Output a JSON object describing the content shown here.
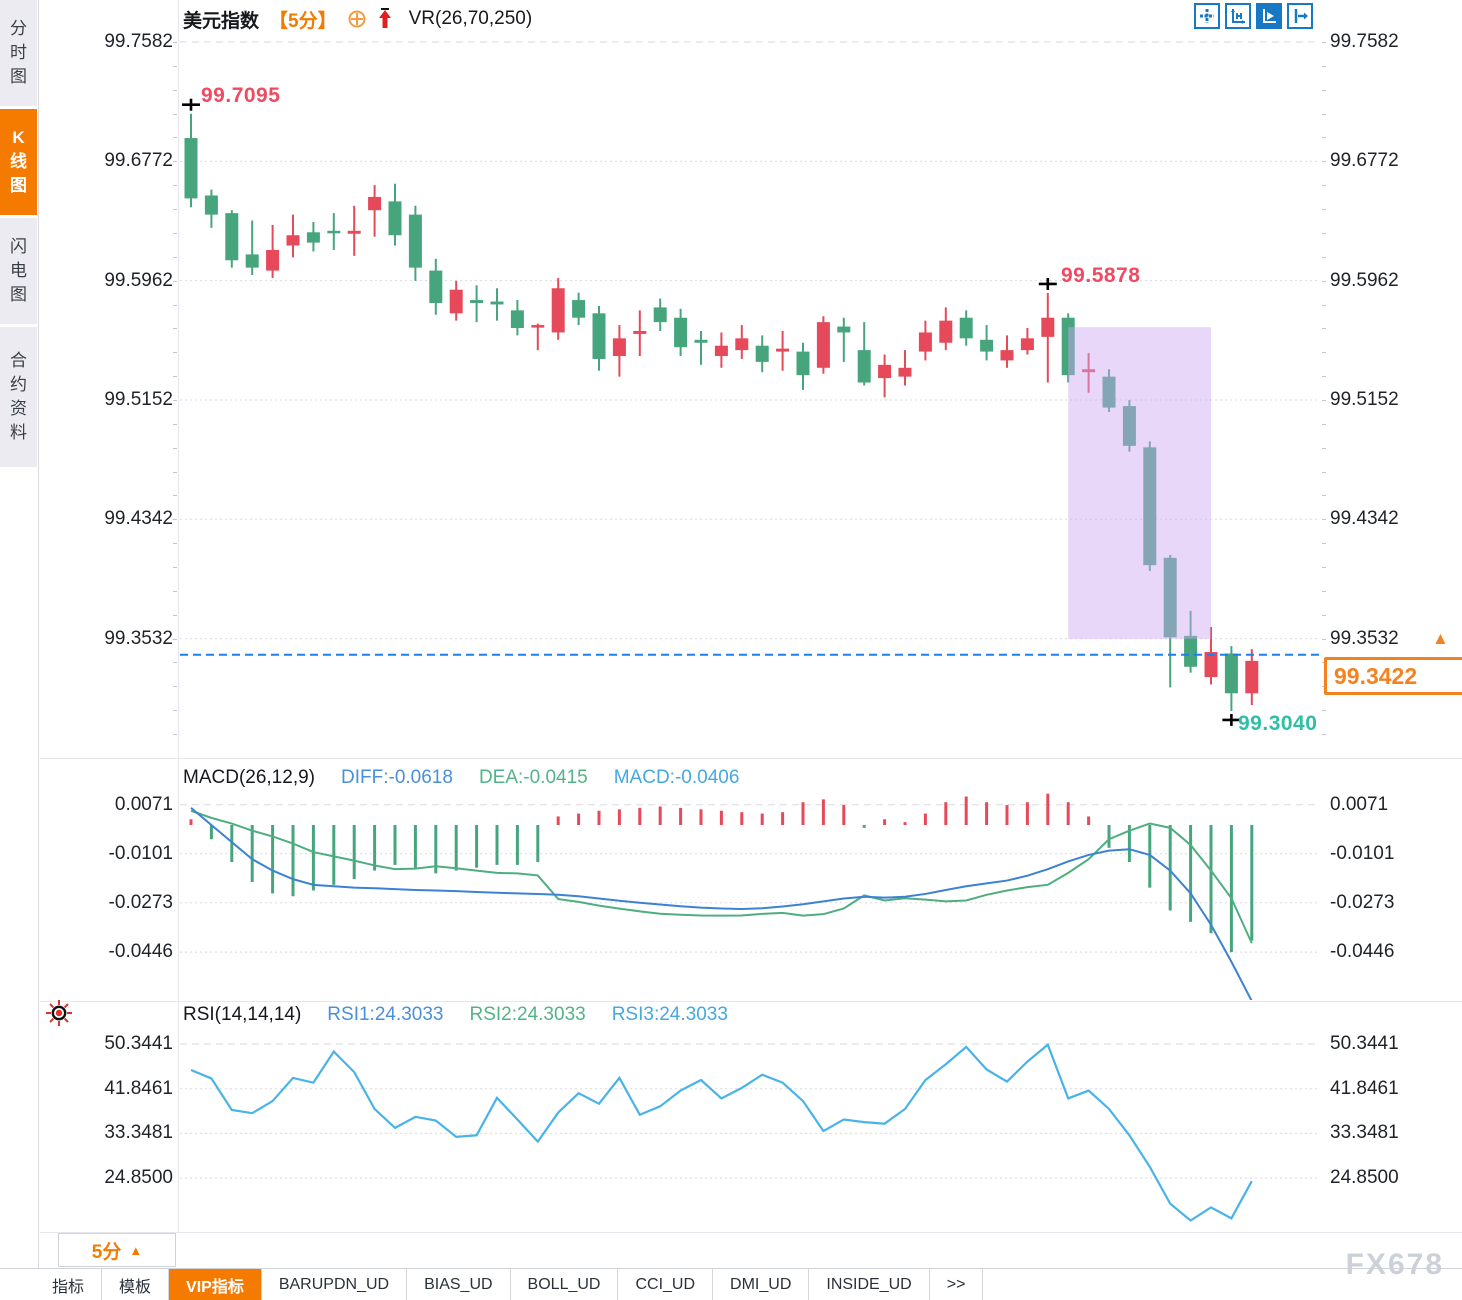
{
  "sidebar": {
    "items": [
      {
        "label": "分时图",
        "active": false
      },
      {
        "label": "K线图",
        "active": true
      },
      {
        "label": "闪电图",
        "active": false
      },
      {
        "label": "合约资料",
        "active": false
      }
    ]
  },
  "header": {
    "symbol": "美元指数",
    "timeframe": "【5分】",
    "indicator": "VR(26,70,250)"
  },
  "toolbar": {
    "icons": [
      "pan-icon",
      "axis-scale-icon",
      "axis-play-icon",
      "export-icon"
    ]
  },
  "icons": {
    "up_triangle": "▲"
  },
  "main_chart": {
    "high_label": "99.7095",
    "swing_high_label": "99.5878",
    "low_label": "99.3040",
    "last_price_label": "99.3422"
  },
  "macd_panel": {
    "title": "MACD(26,12,9)",
    "diff_label": "DIFF:-0.0618",
    "dea_label": "DEA:-0.0415",
    "macd_label": "MACD:-0.0406"
  },
  "rsi_panel": {
    "title": "RSI(14,14,14)",
    "rsi1_label": "RSI1:24.3033",
    "rsi2_label": "RSI2:24.3033",
    "rsi3_label": "RSI3:24.3033"
  },
  "bottom": {
    "timeframe_label": "5分",
    "tabs": [
      {
        "label": "指标",
        "active": false
      },
      {
        "label": "模板",
        "active": false
      },
      {
        "label": "VIP指标",
        "active": true
      },
      {
        "label": "BARUPDN_UD",
        "active": false
      },
      {
        "label": "BIAS_UD",
        "active": false
      },
      {
        "label": "BOLL_UD",
        "active": false
      },
      {
        "label": "CCI_UD",
        "active": false
      },
      {
        "label": "DMI_UD",
        "active": false
      },
      {
        "label": "INSIDE_UD",
        "active": false
      },
      {
        "label": ">>",
        "active": false
      }
    ],
    "watermark": "FX678"
  },
  "colors": {
    "up": "#e6495a",
    "down": "#47a57e",
    "diff_line": "#3b82d4",
    "dea_line": "#4fae7f",
    "rsi_line": "#49b3e8",
    "accent_orange": "#f57a00",
    "highlight_box": "rgba(206,167,245,0.45)",
    "last_price_line": "#1f7fe8",
    "grid": "#d9d9df"
  },
  "chart_data": [
    {
      "type": "candlestick",
      "title": "美元指数 5分",
      "price_top": 99.7582,
      "price_step": 0.081,
      "y_ticks": [
        "99.7582",
        "99.6772",
        "99.5962",
        "99.5152",
        "99.4342",
        "99.3532"
      ],
      "last_price": 99.3422,
      "candles": [
        [
          99.693,
          99.7095,
          99.646,
          99.652
        ],
        [
          99.654,
          99.658,
          99.632,
          99.641
        ],
        [
          99.642,
          99.644,
          99.605,
          99.61
        ],
        [
          99.614,
          99.637,
          99.6,
          99.605
        ],
        [
          99.603,
          99.634,
          99.598,
          99.617
        ],
        [
          99.62,
          99.641,
          99.612,
          99.627
        ],
        [
          99.629,
          99.636,
          99.616,
          99.622
        ],
        [
          99.63,
          99.642,
          99.617,
          99.629
        ],
        [
          99.628,
          99.647,
          99.613,
          99.63
        ],
        [
          99.644,
          99.661,
          99.626,
          99.653
        ],
        [
          99.65,
          99.662,
          99.62,
          99.627
        ],
        [
          99.641,
          99.647,
          99.596,
          99.605
        ],
        [
          99.603,
          99.611,
          99.573,
          99.581
        ],
        [
          99.574,
          99.596,
          99.569,
          99.59
        ],
        [
          99.583,
          99.593,
          99.568,
          99.581
        ],
        [
          99.582,
          99.591,
          99.569,
          99.58
        ],
        [
          99.576,
          99.583,
          99.559,
          99.564
        ],
        [
          99.565,
          99.567,
          99.549,
          99.566
        ],
        [
          99.561,
          99.598,
          99.556,
          99.591
        ],
        [
          99.583,
          99.588,
          99.566,
          99.571
        ],
        [
          99.574,
          99.579,
          99.535,
          99.543
        ],
        [
          99.545,
          99.566,
          99.531,
          99.557
        ],
        [
          99.56,
          99.576,
          99.545,
          99.562
        ],
        [
          99.578,
          99.584,
          99.562,
          99.568
        ],
        [
          99.571,
          99.577,
          99.545,
          99.551
        ],
        [
          99.556,
          99.562,
          99.539,
          99.554
        ],
        [
          99.545,
          99.561,
          99.537,
          99.552
        ],
        [
          99.549,
          99.566,
          99.543,
          99.557
        ],
        [
          99.552,
          99.559,
          99.534,
          99.541
        ],
        [
          99.548,
          99.562,
          99.535,
          99.55
        ],
        [
          99.548,
          99.554,
          99.522,
          99.532
        ],
        [
          99.537,
          99.572,
          99.533,
          99.568
        ],
        [
          99.565,
          99.571,
          99.541,
          99.561
        ],
        [
          99.549,
          99.568,
          99.525,
          99.527
        ],
        [
          99.53,
          99.546,
          99.517,
          99.539
        ],
        [
          99.531,
          99.549,
          99.525,
          99.537
        ],
        [
          99.548,
          99.569,
          99.542,
          99.561
        ],
        [
          99.554,
          99.578,
          99.549,
          99.569
        ],
        [
          99.571,
          99.576,
          99.552,
          99.557
        ],
        [
          99.556,
          99.566,
          99.542,
          99.548
        ],
        [
          99.542,
          99.559,
          99.537,
          99.549
        ],
        [
          99.549,
          99.564,
          99.546,
          99.557
        ],
        [
          99.558,
          99.5878,
          99.527,
          99.571
        ],
        [
          99.571,
          99.574,
          99.527,
          99.532
        ],
        [
          99.534,
          99.547,
          99.52,
          99.536
        ],
        [
          99.531,
          99.536,
          99.507,
          99.51
        ],
        [
          99.511,
          99.515,
          99.48,
          99.484
        ],
        [
          99.483,
          99.487,
          99.399,
          99.403
        ],
        [
          99.408,
          99.41,
          99.32,
          99.354
        ],
        [
          99.355,
          99.372,
          99.33,
          99.334
        ],
        [
          99.327,
          99.361,
          99.322,
          99.344
        ],
        [
          99.343,
          99.348,
          99.304,
          99.316
        ],
        [
          99.316,
          99.346,
          99.308,
          99.338
        ]
      ],
      "highlight_box": {
        "from_index": 43,
        "to_index": 50,
        "price_top": 99.5646,
        "price_bottom": 99.353
      },
      "cross_markers": [
        {
          "index": 0,
          "at": "high"
        },
        {
          "index": 42,
          "at": "high"
        },
        {
          "index": 51,
          "at": "low"
        }
      ]
    },
    {
      "type": "macd-histogram",
      "title": "MACD(26,12,9)",
      "y_ticks": [
        "0.0071",
        "-0.0101",
        "-0.0273",
        "-0.0446"
      ],
      "grid_values": [
        0.0071,
        -0.0101,
        -0.0273,
        -0.0446
      ],
      "diff": [
        0.006,
        0.0,
        -0.006,
        -0.012,
        -0.016,
        -0.019,
        -0.021,
        -0.0215,
        -0.022,
        -0.0222,
        -0.0225,
        -0.0228,
        -0.023,
        -0.0232,
        -0.0235,
        -0.0238,
        -0.024,
        -0.0242,
        -0.0245,
        -0.025,
        -0.0258,
        -0.0266,
        -0.0273,
        -0.0279,
        -0.0285,
        -0.029,
        -0.0293,
        -0.0295,
        -0.0292,
        -0.0286,
        -0.0278,
        -0.0268,
        -0.0258,
        -0.0252,
        -0.0255,
        -0.0252,
        -0.0242,
        -0.0228,
        -0.0215,
        -0.0205,
        -0.0195,
        -0.0178,
        -0.0155,
        -0.0128,
        -0.0105,
        -0.009,
        -0.0085,
        -0.0105,
        -0.016,
        -0.024,
        -0.035,
        -0.048,
        -0.0618
      ],
      "hist": [
        0.002,
        -0.005,
        -0.013,
        -0.02,
        -0.024,
        -0.025,
        -0.023,
        -0.021,
        -0.019,
        -0.016,
        -0.014,
        -0.015,
        -0.017,
        -0.016,
        -0.015,
        -0.014,
        -0.014,
        -0.013,
        0.003,
        0.004,
        0.005,
        0.0055,
        0.006,
        0.0065,
        0.006,
        0.0055,
        0.005,
        0.0045,
        0.004,
        0.0045,
        0.008,
        0.009,
        0.007,
        -0.001,
        0.002,
        0.001,
        0.004,
        0.008,
        0.01,
        0.008,
        0.007,
        0.008,
        0.011,
        0.008,
        0.003,
        -0.008,
        -0.013,
        -0.022,
        -0.03,
        -0.034,
        -0.038,
        -0.0446,
        -0.0406
      ],
      "note": "dea = diff - hist/2; displayed DIFF -0.0618, DEA -0.0415, MACD -0.0406"
    },
    {
      "type": "line",
      "title": "RSI(14,14,14)",
      "y_ticks": [
        "50.3441",
        "41.8461",
        "33.3481",
        "24.8500"
      ],
      "grid_values": [
        50.3441,
        41.8461,
        33.3481,
        24.85
      ],
      "values": [
        45.4,
        43.8,
        37.8,
        37.2,
        39.5,
        43.9,
        43.0,
        48.9,
        45.0,
        38.0,
        34.4,
        36.5,
        35.8,
        32.7,
        33.0,
        40.1,
        36.0,
        31.8,
        37.3,
        41.0,
        39.0,
        43.9,
        36.9,
        38.5,
        41.5,
        43.5,
        40.0,
        42.0,
        44.5,
        43.0,
        39.5,
        33.8,
        36.0,
        35.5,
        35.2,
        38.0,
        43.5,
        46.5,
        49.8,
        45.5,
        43.2,
        47.0,
        50.2,
        40.0,
        41.5,
        38.0,
        33.0,
        27.0,
        20.0,
        16.8,
        19.3,
        17.2,
        24.3
      ]
    }
  ]
}
